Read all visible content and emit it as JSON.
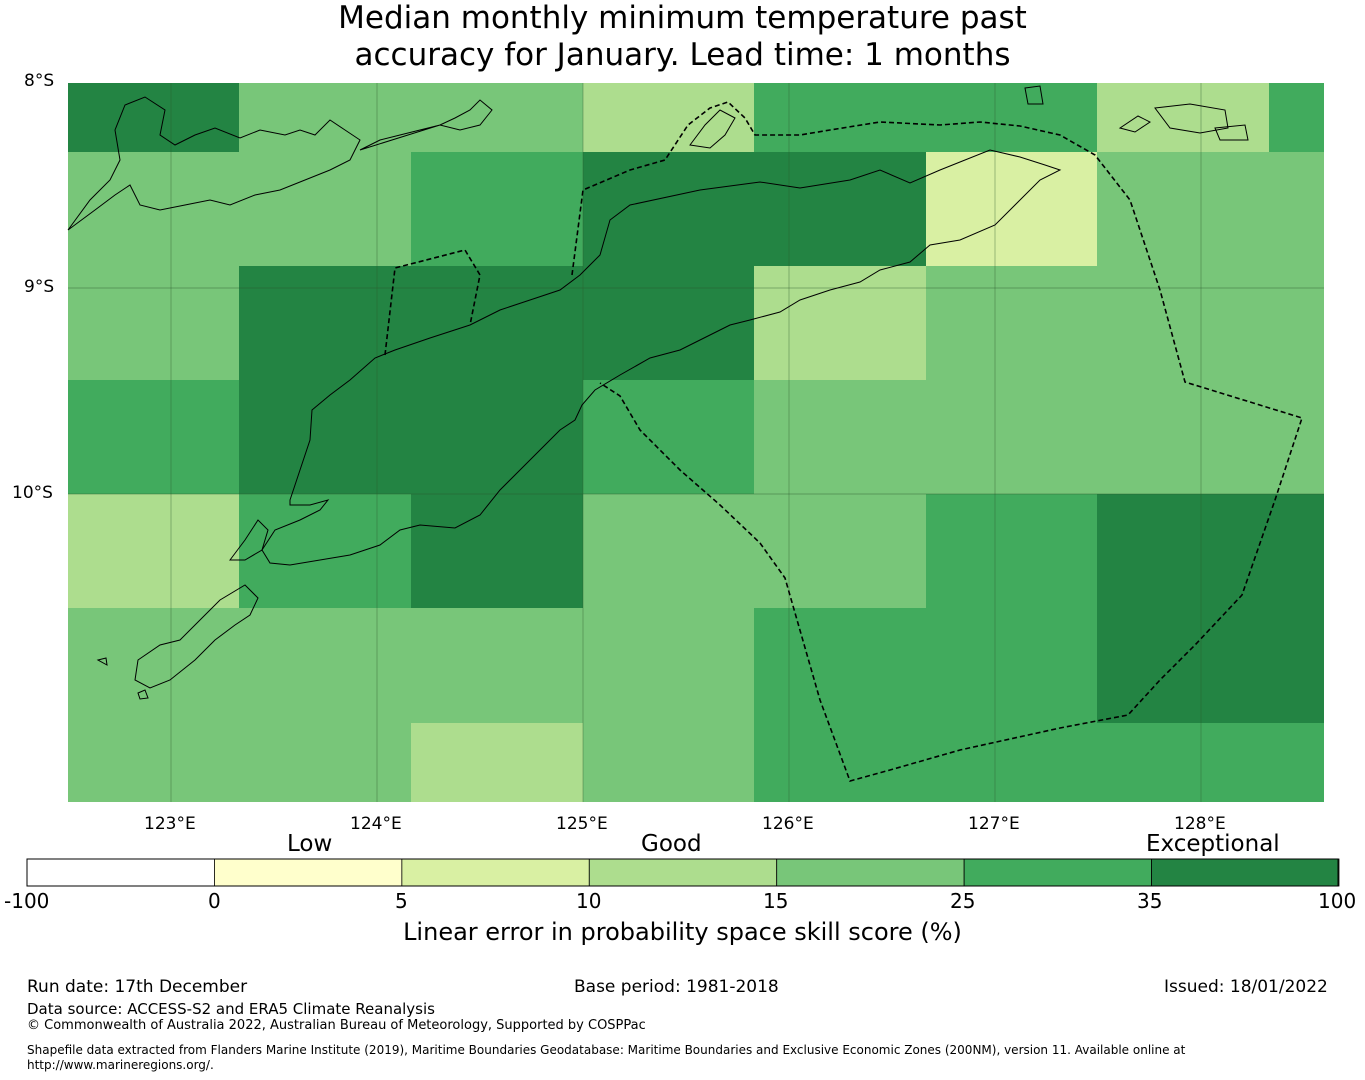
{
  "title_line1": "Median monthly minimum temperature past",
  "title_line2": "accuracy for January. Lead time: 1 months",
  "map": {
    "lat_labels": [
      "8°S",
      "9°S",
      "10°S"
    ],
    "lon_labels": [
      "123°E",
      "124°E",
      "125°E",
      "126°E",
      "127°E",
      "128°E"
    ],
    "extent": {
      "lon_min": 122.5,
      "lon_max": 128.6,
      "lat_min": -11.5,
      "lat_max": -8.0
    },
    "cell_size_deg": 0.83,
    "grid_cells": [
      {
        "row": 0,
        "col": 0,
        "score_class": 6
      },
      {
        "row": 0,
        "col": 1,
        "score_class": 4
      },
      {
        "row": 0,
        "col": 2,
        "score_class": 4
      },
      {
        "row": 0,
        "col": 3,
        "score_class": 3
      },
      {
        "row": 0,
        "col": 4,
        "score_class": 5
      },
      {
        "row": 0,
        "col": 5,
        "score_class": 5
      },
      {
        "row": 0,
        "col": 6,
        "score_class": 3
      },
      {
        "row": 0,
        "col": 7,
        "score_class": 5
      },
      {
        "row": 1,
        "col": 0,
        "score_class": 4
      },
      {
        "row": 1,
        "col": 1,
        "score_class": 4
      },
      {
        "row": 1,
        "col": 2,
        "score_class": 5
      },
      {
        "row": 1,
        "col": 3,
        "score_class": 6
      },
      {
        "row": 1,
        "col": 4,
        "score_class": 6
      },
      {
        "row": 1,
        "col": 5,
        "score_class": 2
      },
      {
        "row": 1,
        "col": 6,
        "score_class": 4
      },
      {
        "row": 1,
        "col": 7,
        "score_class": 4
      },
      {
        "row": 2,
        "col": 0,
        "score_class": 4
      },
      {
        "row": 2,
        "col": 1,
        "score_class": 6
      },
      {
        "row": 2,
        "col": 2,
        "score_class": 6
      },
      {
        "row": 2,
        "col": 3,
        "score_class": 6
      },
      {
        "row": 2,
        "col": 4,
        "score_class": 3
      },
      {
        "row": 2,
        "col": 5,
        "score_class": 4
      },
      {
        "row": 2,
        "col": 6,
        "score_class": 4
      },
      {
        "row": 2,
        "col": 7,
        "score_class": 4
      },
      {
        "row": 3,
        "col": 0,
        "score_class": 5
      },
      {
        "row": 3,
        "col": 1,
        "score_class": 6
      },
      {
        "row": 3,
        "col": 2,
        "score_class": 6
      },
      {
        "row": 3,
        "col": 3,
        "score_class": 5
      },
      {
        "row": 3,
        "col": 4,
        "score_class": 4
      },
      {
        "row": 3,
        "col": 5,
        "score_class": 4
      },
      {
        "row": 3,
        "col": 6,
        "score_class": 4
      },
      {
        "row": 3,
        "col": 7,
        "score_class": 4
      },
      {
        "row": 4,
        "col": 0,
        "score_class": 3
      },
      {
        "row": 4,
        "col": 1,
        "score_class": 5
      },
      {
        "row": 4,
        "col": 2,
        "score_class": 6
      },
      {
        "row": 4,
        "col": 3,
        "score_class": 4
      },
      {
        "row": 4,
        "col": 4,
        "score_class": 4
      },
      {
        "row": 4,
        "col": 5,
        "score_class": 5
      },
      {
        "row": 4,
        "col": 6,
        "score_class": 6
      },
      {
        "row": 4,
        "col": 7,
        "score_class": 6
      },
      {
        "row": 5,
        "col": 0,
        "score_class": 4
      },
      {
        "row": 5,
        "col": 1,
        "score_class": 4
      },
      {
        "row": 5,
        "col": 2,
        "score_class": 4
      },
      {
        "row": 5,
        "col": 3,
        "score_class": 4
      },
      {
        "row": 5,
        "col": 4,
        "score_class": 5
      },
      {
        "row": 5,
        "col": 5,
        "score_class": 5
      },
      {
        "row": 5,
        "col": 6,
        "score_class": 6
      },
      {
        "row": 5,
        "col": 7,
        "score_class": 6
      },
      {
        "row": 6,
        "col": 0,
        "score_class": 4
      },
      {
        "row": 6,
        "col": 1,
        "score_class": 4
      },
      {
        "row": 6,
        "col": 2,
        "score_class": 3
      },
      {
        "row": 6,
        "col": 3,
        "score_class": 4
      },
      {
        "row": 6,
        "col": 4,
        "score_class": 5
      },
      {
        "row": 6,
        "col": 5,
        "score_class": 5
      },
      {
        "row": 6,
        "col": 6,
        "score_class": 5
      },
      {
        "row": 6,
        "col": 7,
        "score_class": 5
      }
    ]
  },
  "colorbar": {
    "tier_labels": [
      "Low",
      "Good",
      "Exceptional"
    ],
    "ticks": [
      "-100",
      "0",
      "5",
      "10",
      "15",
      "25",
      "35",
      "100"
    ],
    "colors": [
      "#ffffff",
      "#ffffcc",
      "#d9f0a3",
      "#addd8e",
      "#78c679",
      "#41ab5d",
      "#238443"
    ],
    "label": "Linear error in probability space skill score (%)"
  },
  "footer": {
    "run_date": "Run date: 17th December",
    "base_period": "Base period: 1981-2018",
    "issued": "Issued: 18/01/2022",
    "data_source": "Data source: ACCESS-S2 and ERA5 Climate Reanalysis",
    "copyright": "© Commonwealth of Australia 2022, Australian Bureau of Meteorology, Supported by COSPPac",
    "shapefile_line1": "Shapefile data extracted from Flanders Marine Institute (2019), Maritime Boundaries Geodatabase: Maritime Boundaries and Exclusive Economic Zones (200NM), version 11. Available online at",
    "shapefile_line2": "http://www.marineregions.org/."
  }
}
